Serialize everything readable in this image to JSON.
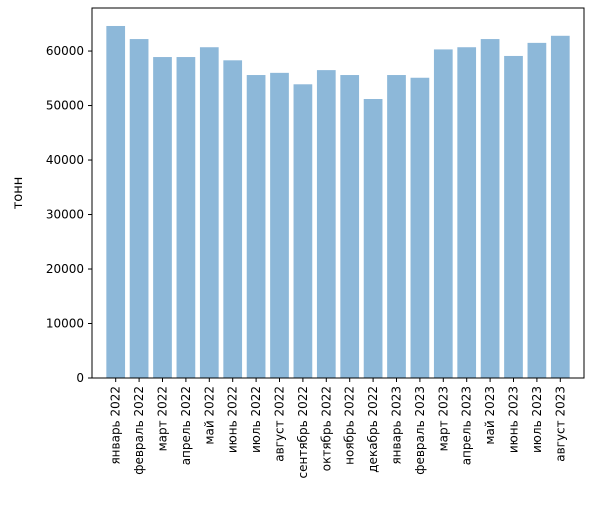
{
  "chart_data": {
    "type": "bar",
    "title": "",
    "xlabel": "",
    "ylabel": "тонн",
    "categories": [
      "январь 2022",
      "февраль 2022",
      "март 2022",
      "апрель 2022",
      "май 2022",
      "июнь 2022",
      "июль 2022",
      "август 2022",
      "сентябрь 2022",
      "октябрь 2022",
      "ноябрь 2022",
      "декабрь 2022",
      "январь 2023",
      "февраль 2023",
      "март 2023",
      "апрель 2023",
      "май 2023",
      "июнь 2023",
      "июль 2023",
      "август 2023"
    ],
    "values": [
      64600,
      62200,
      58900,
      58900,
      60700,
      58300,
      55600,
      56000,
      53900,
      56500,
      55600,
      51200,
      55600,
      55100,
      60300,
      60700,
      62200,
      59100,
      61500,
      62800
    ],
    "ylim": [
      0,
      67900
    ],
    "yticks": [
      0,
      10000,
      20000,
      30000,
      40000,
      50000,
      60000
    ],
    "bar_color": "#8db8d9",
    "grid": false
  }
}
